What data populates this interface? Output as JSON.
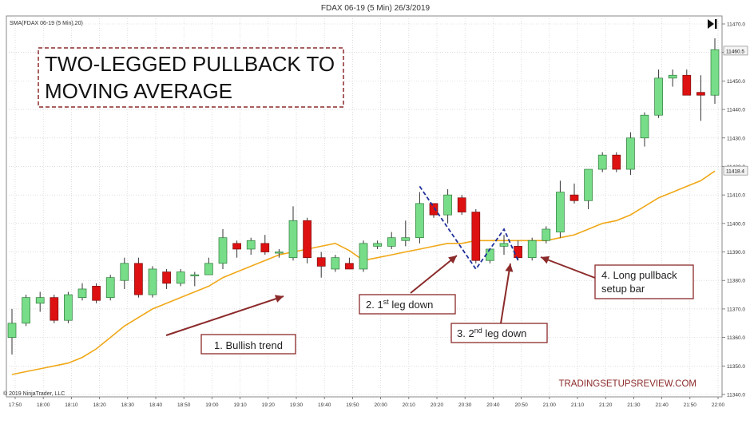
{
  "title": "FDAX 06-19 (5 Min)  26/3/2019",
  "indicator_label": "SMA(FDAX 06-19 (5 Min),20)",
  "copyright": "© 2019 NinjaTrader, LLC",
  "watermark": "TRADINGSETUPSREVIEW.COM",
  "headline": [
    "TWO-LEGGED PULLBACK TO",
    "MOVING AVERAGE"
  ],
  "annotations": {
    "a1": "1. Bullish trend",
    "a2_prefix": "2. 1",
    "a2_sup": "st",
    "a2_suffix": " leg down",
    "a3_prefix": "3. 2",
    "a3_sup": "nd",
    "a3_suffix": " leg down",
    "a4_line1": "4. Long pullback",
    "a4_line2": "setup bar"
  },
  "price_markers": [
    "11460.5",
    "11418.4"
  ],
  "colors": {
    "up": "#77dd88",
    "down": "#dd1111",
    "wick": "#333333",
    "sma": "#f0a818",
    "annotation": "#8b2a2a",
    "zigzag": "#1f2f9a",
    "grid": "#c8c8c8"
  },
  "chart_data": {
    "type": "candlestick",
    "ylim": [
      11340,
      11470
    ],
    "yticks": [
      "11340.0",
      "11350.0",
      "11360.0",
      "11370.0",
      "11380.0",
      "11390.0",
      "11400.0",
      "11410.0",
      "11420.0",
      "11430.0",
      "11440.0",
      "11450.0",
      "11460.0",
      "11470.0"
    ],
    "xticks": [
      "17:50",
      "18:00",
      "18:10",
      "18:20",
      "18:30",
      "18:40",
      "18:50",
      "19:00",
      "19:10",
      "19:20",
      "19:30",
      "19:40",
      "19:50",
      "20:00",
      "20:10",
      "20:20",
      "20:30",
      "20:40",
      "20:50",
      "21:00",
      "21:10",
      "21:20",
      "21:30",
      "21:40",
      "21:50",
      "22:00"
    ],
    "candles": [
      {
        "open": 11360,
        "high": 11370,
        "low": 11354,
        "close": 11365
      },
      {
        "open": 11365,
        "high": 11375,
        "low": 11364,
        "close": 11374
      },
      {
        "open": 11372,
        "high": 11376,
        "low": 11369,
        "close": 11374
      },
      {
        "open": 11374,
        "high": 11375,
        "low": 11365,
        "close": 11366
      },
      {
        "open": 11366,
        "high": 11376,
        "low": 11365,
        "close": 11375
      },
      {
        "open": 11374,
        "high": 11379,
        "low": 11373,
        "close": 11377
      },
      {
        "open": 11378,
        "high": 11379,
        "low": 11372,
        "close": 11373
      },
      {
        "open": 11374,
        "high": 11382,
        "low": 11373,
        "close": 11381
      },
      {
        "open": 11380,
        "high": 11388,
        "low": 11377,
        "close": 11386
      },
      {
        "open": 11386,
        "high": 11388,
        "low": 11374,
        "close": 11375
      },
      {
        "open": 11375,
        "high": 11385,
        "low": 11374,
        "close": 11384
      },
      {
        "open": 11383,
        "high": 11384,
        "low": 11377,
        "close": 11379
      },
      {
        "open": 11379,
        "high": 11384,
        "low": 11378,
        "close": 11383
      },
      {
        "open": 11382,
        "high": 11383,
        "low": 11378,
        "close": 11382
      },
      {
        "open": 11382,
        "high": 11388,
        "low": 11382,
        "close": 11386
      },
      {
        "open": 11386,
        "high": 11398,
        "low": 11384,
        "close": 11395
      },
      {
        "open": 11393,
        "high": 11394,
        "low": 11388,
        "close": 11391
      },
      {
        "open": 11391,
        "high": 11395,
        "low": 11389,
        "close": 11394
      },
      {
        "open": 11393,
        "high": 11396,
        "low": 11389,
        "close": 11390
      },
      {
        "open": 11390,
        "high": 11391,
        "low": 11388,
        "close": 11390
      },
      {
        "open": 11388,
        "high": 11406,
        "low": 11387,
        "close": 11401
      },
      {
        "open": 11401,
        "high": 11402,
        "low": 11386,
        "close": 11388
      },
      {
        "open": 11388,
        "high": 11390,
        "low": 11381,
        "close": 11385
      },
      {
        "open": 11384,
        "high": 11389,
        "low": 11383,
        "close": 11388
      },
      {
        "open": 11386,
        "high": 11388,
        "low": 11385,
        "close": 11384
      },
      {
        "open": 11384,
        "high": 11394,
        "low": 11383,
        "close": 11393
      },
      {
        "open": 11392,
        "high": 11394,
        "low": 11391,
        "close": 11393
      },
      {
        "open": 11392,
        "high": 11397,
        "low": 11391,
        "close": 11395
      },
      {
        "open": 11394,
        "high": 11401,
        "low": 11392,
        "close": 11395
      },
      {
        "open": 11395,
        "high": 11411,
        "low": 11393,
        "close": 11407
      },
      {
        "open": 11407,
        "high": 11407,
        "low": 11402,
        "close": 11403
      },
      {
        "open": 11403,
        "high": 11412,
        "low": 11400,
        "close": 11410
      },
      {
        "open": 11409,
        "high": 11410,
        "low": 11403,
        "close": 11404
      },
      {
        "open": 11404,
        "high": 11405,
        "low": 11386,
        "close": 11387
      },
      {
        "open": 11387,
        "high": 11390,
        "low": 11386,
        "close": 11391
      },
      {
        "open": 11392,
        "high": 11396,
        "low": 11389,
        "close": 11393
      },
      {
        "open": 11392,
        "high": 11394,
        "low": 11387,
        "close": 11388
      },
      {
        "open": 11388,
        "high": 11395,
        "low": 11387,
        "close": 11394
      },
      {
        "open": 11394,
        "high": 11399,
        "low": 11393,
        "close": 11398
      },
      {
        "open": 11397,
        "high": 11415,
        "low": 11395,
        "close": 11411
      },
      {
        "open": 11410,
        "high": 11414,
        "low": 11407,
        "close": 11408
      },
      {
        "open": 11408,
        "high": 11418,
        "low": 11405,
        "close": 11419
      },
      {
        "open": 11419,
        "high": 11425,
        "low": 11418,
        "close": 11424
      },
      {
        "open": 11424,
        "high": 11425,
        "low": 11418,
        "close": 11419
      },
      {
        "open": 11419,
        "high": 11432,
        "low": 11417,
        "close": 11430
      },
      {
        "open": 11430,
        "high": 11439,
        "low": 11427,
        "close": 11438
      },
      {
        "open": 11438,
        "high": 11454,
        "low": 11437,
        "close": 11451
      },
      {
        "open": 11451,
        "high": 11454,
        "low": 11448,
        "close": 11452
      },
      {
        "open": 11452,
        "high": 11454,
        "low": 11445,
        "close": 11445
      },
      {
        "open": 11446,
        "high": 11452,
        "low": 11436,
        "close": 11445
      },
      {
        "open": 11445,
        "high": 11465,
        "low": 11442,
        "close": 11461
      }
    ],
    "sma": [
      11347,
      11348,
      11349,
      11350,
      11351,
      11353,
      11356,
      11360,
      11364,
      11367,
      11370,
      11372,
      11374,
      11376,
      11378,
      11381,
      11383,
      11385,
      11387,
      11389,
      11390,
      11391,
      11392,
      11393,
      11385.5,
      11387,
      11388,
      11389,
      11390,
      11391,
      11392,
      11393,
      11393,
      11394,
      11394,
      11394,
      11394,
      11394,
      11394,
      11395,
      11396,
      11398,
      11400,
      11401,
      11403,
      11406,
      11409,
      11411,
      11413,
      11415,
      11418.4
    ]
  },
  "zigzag_leg1": [
    [
      11413,
      29
    ],
    [
      11384,
      33
    ],
    [
      11398,
      35
    ],
    [
      11387,
      36
    ]
  ]
}
